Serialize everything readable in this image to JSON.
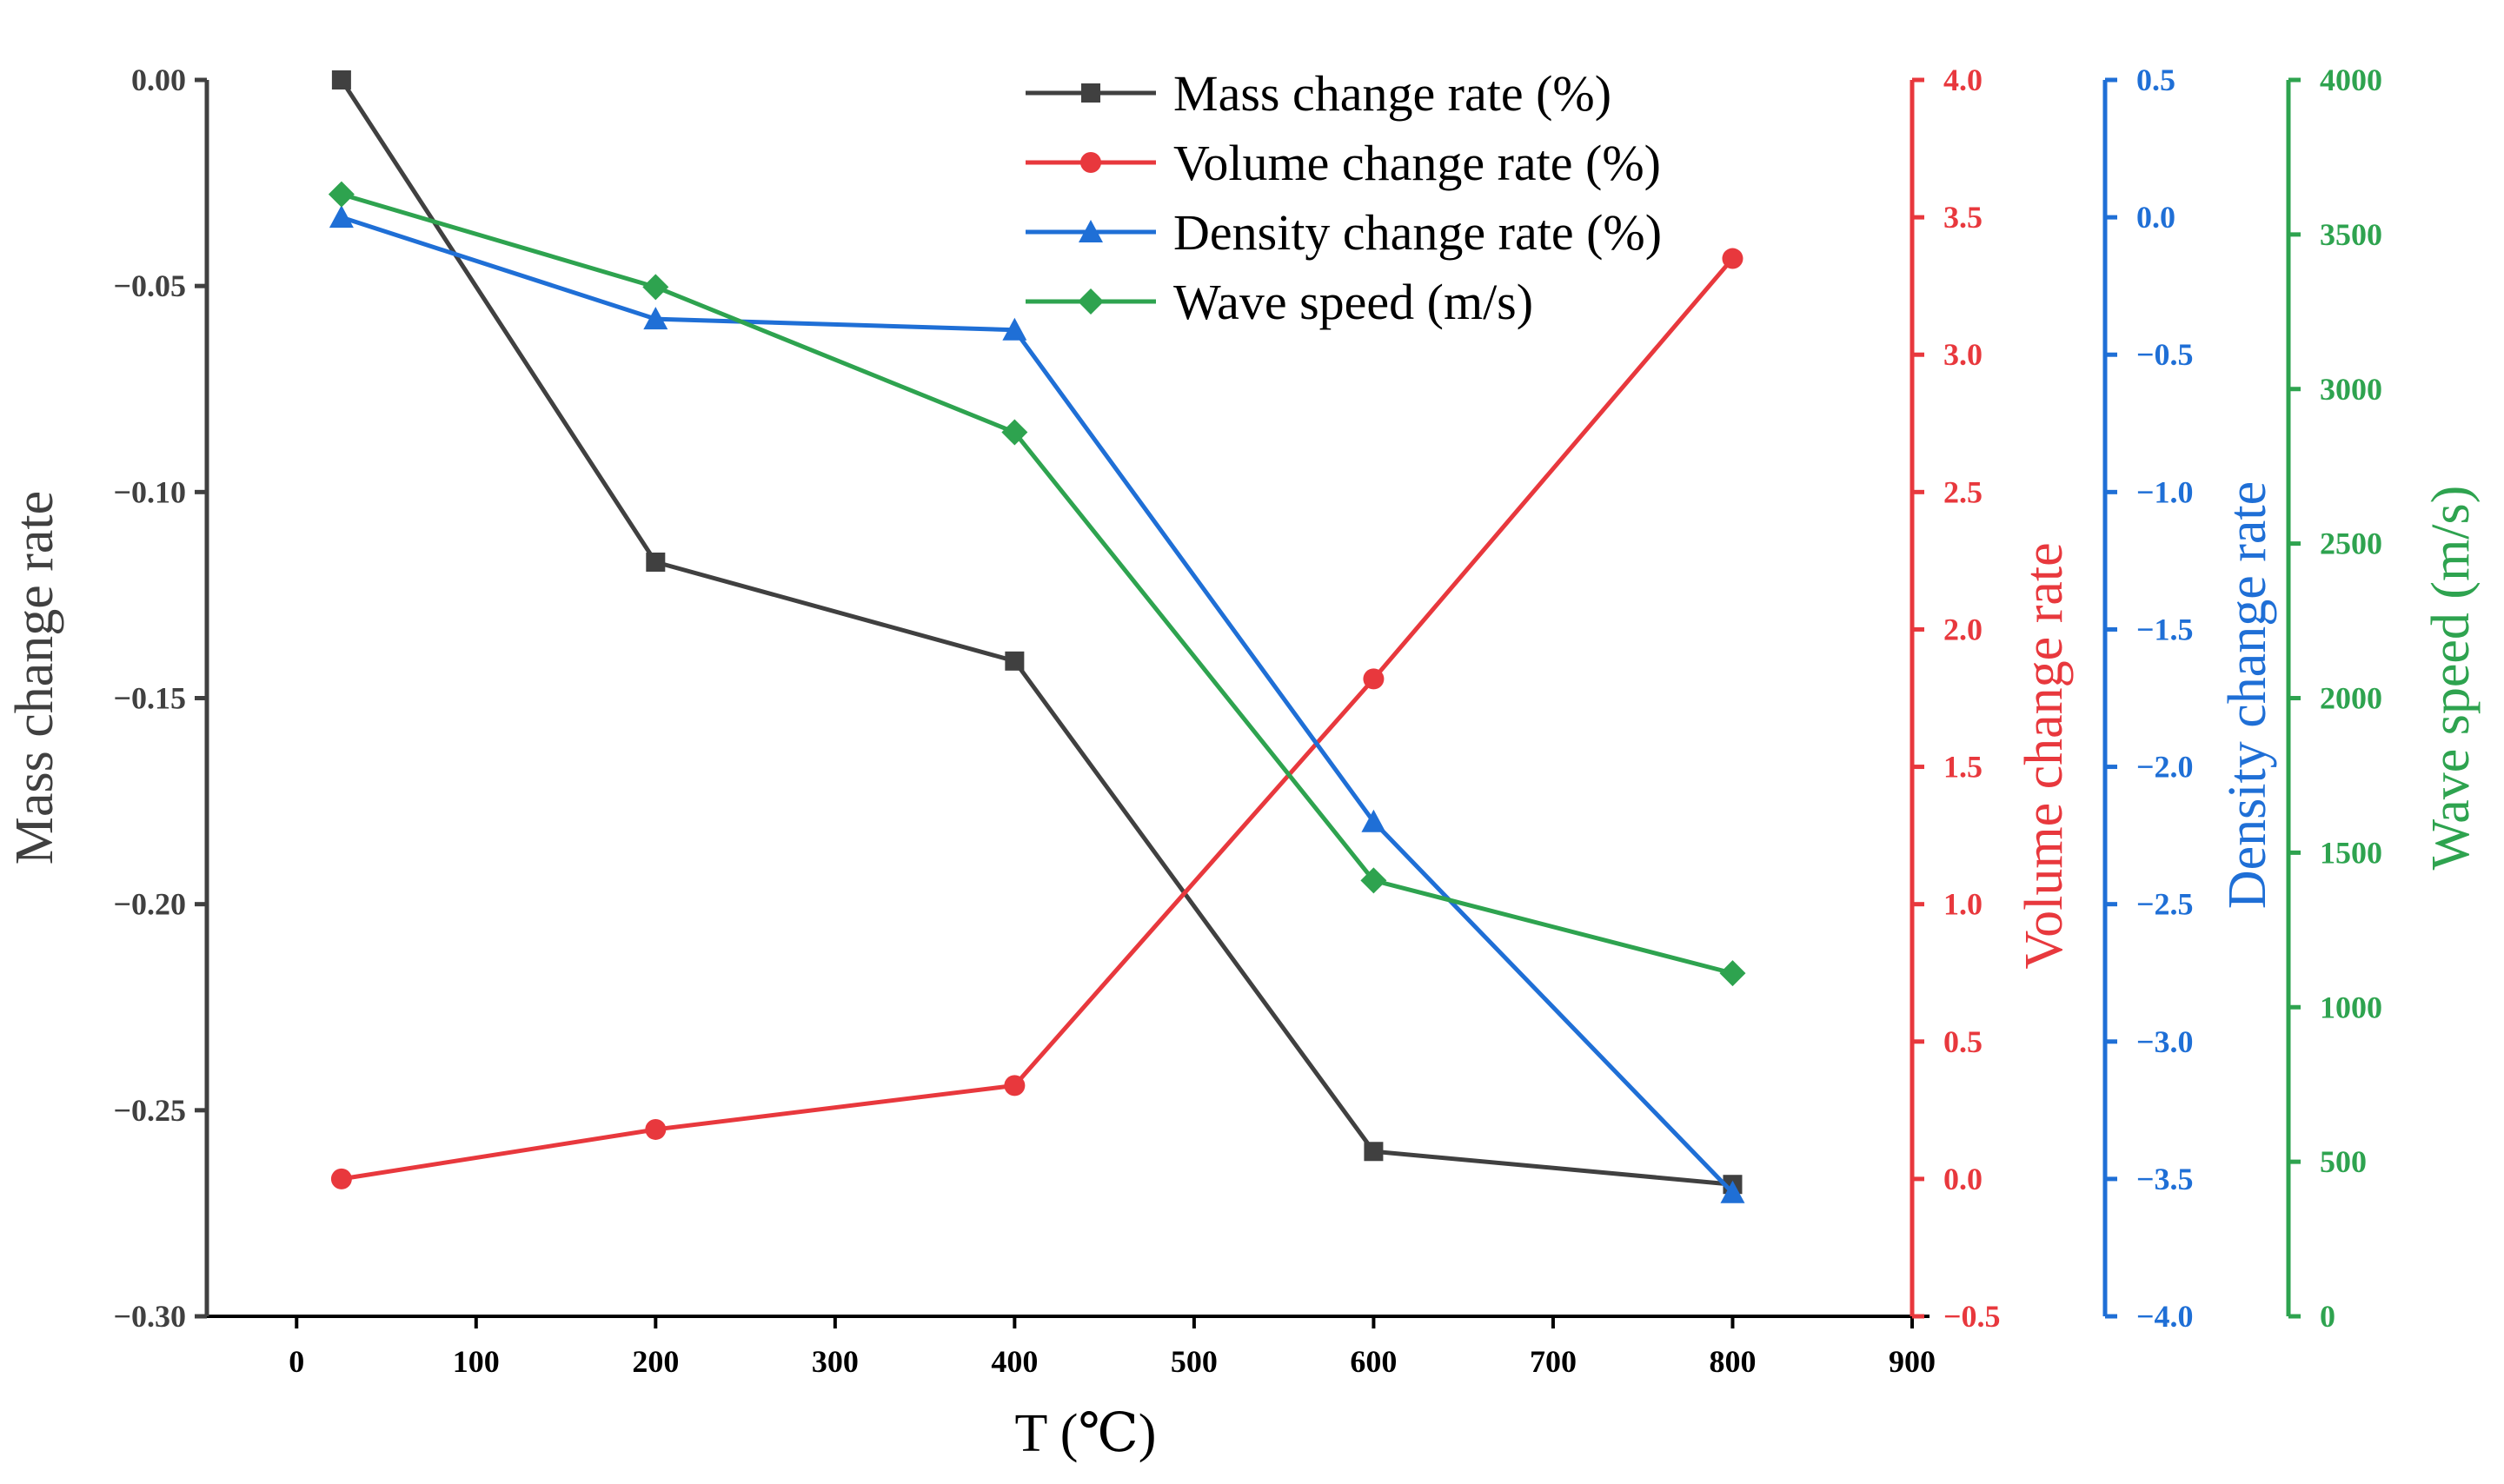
{
  "chart_data": {
    "type": "line",
    "x": [
      25,
      200,
      400,
      600,
      800
    ],
    "xlabel": "T (℃)",
    "xlim": [
      -50,
      900
    ],
    "xticks": [
      0,
      100,
      200,
      300,
      400,
      500,
      600,
      700,
      800,
      900
    ],
    "axes": [
      {
        "id": "mass",
        "label": "Mass change rate",
        "color": "#404040",
        "side": "left",
        "lim": [
          -0.3,
          0.0
        ],
        "ticks": [
          0.0,
          -0.05,
          -0.1,
          -0.15,
          -0.2,
          -0.25,
          -0.3
        ],
        "tick_labels": [
          "0.00",
          "−0.05",
          "−0.10",
          "−0.15",
          "−0.20",
          "−0.25",
          "−0.30"
        ]
      },
      {
        "id": "volume",
        "label": "Volume change rate",
        "color": "#e8383d",
        "side": "right",
        "lim": [
          -0.5,
          4.0
        ],
        "ticks": [
          4.0,
          3.5,
          3.0,
          2.5,
          2.0,
          1.5,
          1.0,
          0.5,
          0.0,
          -0.5
        ],
        "tick_labels": [
          "4.0",
          "3.5",
          "3.0",
          "2.5",
          "2.0",
          "1.5",
          "1.0",
          "0.5",
          "0.0",
          "−0.5"
        ]
      },
      {
        "id": "density",
        "label": "Density change rate",
        "color": "#1f6fd6",
        "side": "right",
        "lim": [
          -4.0,
          0.5
        ],
        "ticks": [
          0.5,
          0.0,
          -0.5,
          -1.0,
          -1.5,
          -2.0,
          -2.5,
          -3.0,
          -3.5,
          -4.0
        ],
        "tick_labels": [
          "0.5",
          "0.0",
          "−0.5",
          "−1.0",
          "−1.5",
          "−2.0",
          "−2.5",
          "−3.0",
          "−3.5",
          "−4.0"
        ]
      },
      {
        "id": "wave",
        "label": "Wave speed (m/s)",
        "color": "#2ea34f",
        "side": "right",
        "lim": [
          0,
          4000
        ],
        "ticks": [
          4000,
          3500,
          3000,
          2500,
          2000,
          1500,
          1000,
          500,
          0
        ],
        "tick_labels": [
          "4000",
          "3500",
          "3000",
          "2500",
          "2000",
          "1500",
          "1000",
          "500",
          "0"
        ]
      }
    ],
    "series": [
      {
        "name": "Mass change rate (%)",
        "axis": "mass",
        "marker": "square",
        "color": "#404040",
        "values": [
          0.0,
          -0.117,
          -0.141,
          -0.26,
          -0.268
        ]
      },
      {
        "name": "Volume change rate (%)",
        "axis": "volume",
        "marker": "circle",
        "color": "#e8383d",
        "values": [
          0.0,
          0.18,
          0.34,
          1.82,
          3.35
        ]
      },
      {
        "name": "Density change rate (%)",
        "axis": "density",
        "marker": "triangle",
        "color": "#1f6fd6",
        "values": [
          0.0,
          -0.37,
          -0.41,
          -2.2,
          -3.55
        ]
      },
      {
        "name": "Wave speed (m/s)",
        "axis": "wave",
        "marker": "diamond",
        "color": "#2ea34f",
        "values": [
          3630,
          3330,
          2860,
          1410,
          1110
        ]
      }
    ],
    "legend_position": "top-center",
    "grid": false
  }
}
